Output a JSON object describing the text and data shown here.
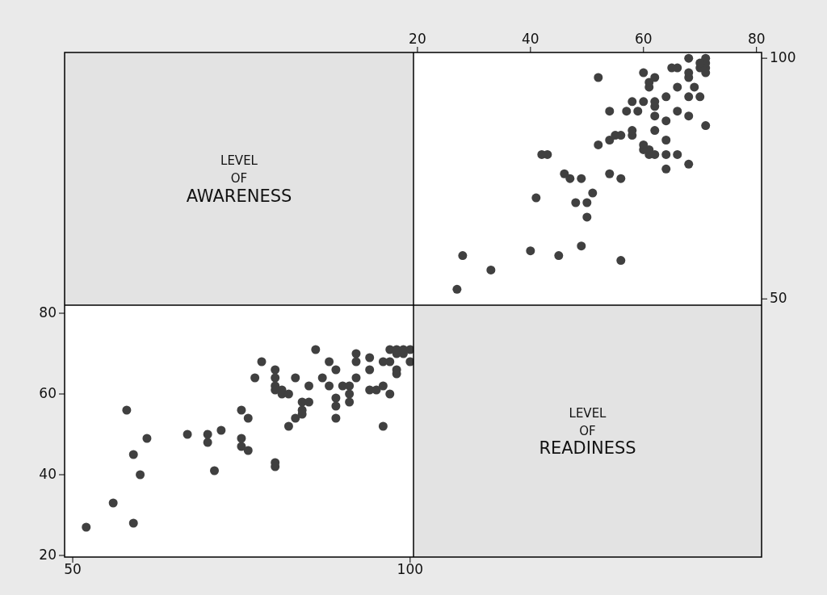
{
  "chart_data": [
    {
      "type": "other",
      "annotations": [
        "LEVEL",
        "OF",
        "AWARENESS"
      ]
    },
    {
      "type": "scatter",
      "marker": "circle",
      "xlim": [
        19.3,
        80.9
      ],
      "xticks": [
        20,
        40,
        60,
        80
      ],
      "ylim": [
        48.7,
        101.2
      ],
      "yticks": [
        50,
        100
      ],
      "series": [
        {
          "color": "#404040",
          "x": [
            56,
            49,
            45,
            40,
            33,
            28,
            27,
            50,
            50,
            48,
            51,
            41,
            56,
            49,
            47,
            54,
            46,
            43,
            42,
            64,
            68,
            66,
            64,
            62,
            61,
            61,
            60,
            60,
            64,
            52,
            54,
            55,
            56,
            58,
            58,
            62,
            71,
            64,
            68,
            62,
            66,
            59,
            57,
            54,
            62,
            62,
            60,
            58,
            70,
            68,
            64,
            69,
            66,
            61,
            61,
            62,
            60,
            52,
            68,
            68,
            66,
            65,
            71,
            71,
            71,
            71,
            70,
            70,
            68
          ],
          "values": [
            58,
            61,
            59,
            60,
            56,
            59,
            52,
            67,
            70,
            70,
            72,
            71,
            75,
            75,
            75,
            76,
            76,
            80,
            80,
            77,
            78,
            80,
            80,
            80,
            80,
            81,
            81,
            82,
            83,
            82,
            83,
            84,
            84,
            84,
            85,
            85,
            86,
            87,
            88,
            88,
            89,
            89,
            89,
            89,
            90,
            91,
            91,
            91,
            92,
            92,
            92,
            94,
            94,
            94,
            95,
            96,
            97,
            96,
            96,
            97,
            98,
            98,
            97,
            98,
            99,
            100,
            98,
            99,
            100
          ]
        }
      ]
    },
    {
      "type": "scatter",
      "marker": "circle",
      "xlim": [
        48.8,
        100.5
      ],
      "xticks": [
        50,
        100
      ],
      "ylim": [
        19.6,
        82
      ],
      "yticks": [
        20,
        40,
        60,
        80
      ],
      "series": [
        {
          "color": "#404040",
          "x": [
            58,
            61,
            59,
            60,
            56,
            59,
            52,
            67,
            70,
            70,
            72,
            71,
            75,
            75,
            75,
            76,
            76,
            80,
            80,
            77,
            78,
            80,
            80,
            80,
            80,
            81,
            81,
            82,
            83,
            82,
            83,
            84,
            84,
            84,
            85,
            85,
            86,
            87,
            88,
            88,
            89,
            89,
            89,
            89,
            90,
            91,
            91,
            91,
            92,
            92,
            92,
            94,
            94,
            94,
            95,
            96,
            97,
            96,
            96,
            97,
            98,
            98,
            97,
            98,
            99,
            100,
            98,
            99,
            100
          ],
          "values": [
            56,
            49,
            45,
            40,
            33,
            28,
            27,
            50,
            50,
            48,
            51,
            41,
            56,
            49,
            47,
            54,
            46,
            43,
            42,
            64,
            68,
            66,
            64,
            62,
            61,
            61,
            60,
            60,
            64,
            52,
            54,
            55,
            56,
            58,
            58,
            62,
            71,
            64,
            68,
            62,
            66,
            59,
            57,
            54,
            62,
            62,
            60,
            58,
            70,
            68,
            64,
            69,
            66,
            61,
            61,
            62,
            60,
            52,
            68,
            68,
            66,
            65,
            71,
            71,
            71,
            71,
            70,
            70,
            68
          ]
        }
      ]
    },
    {
      "type": "other",
      "annotations": [
        "LEVEL",
        "OF",
        "READINESS"
      ]
    }
  ]
}
